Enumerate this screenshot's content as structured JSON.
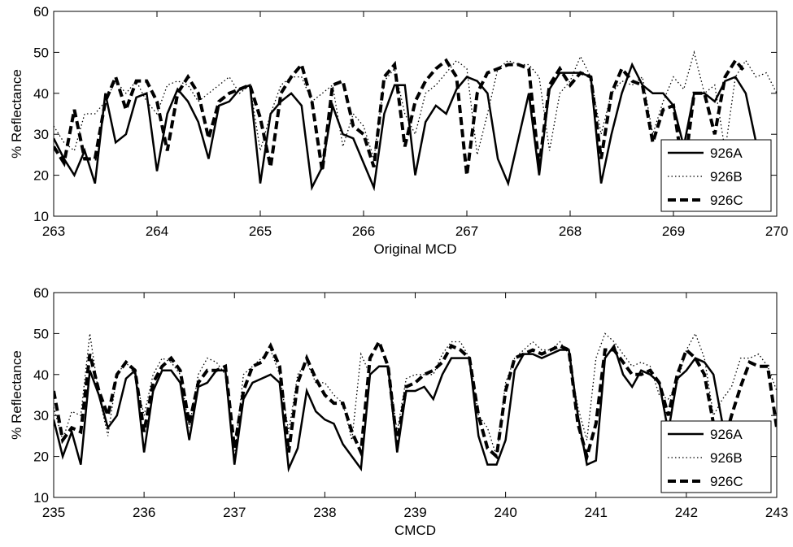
{
  "chart_data": [
    {
      "type": "line",
      "xlabel": "Original MCD",
      "ylabel": "% Reflectance",
      "x": [
        263.0,
        263.1,
        263.2,
        263.3,
        263.4,
        263.5,
        263.6,
        263.7,
        263.8,
        263.9,
        264.0,
        264.1,
        264.2,
        264.3,
        264.4,
        264.5,
        264.6,
        264.7,
        264.8,
        264.9,
        265.0,
        265.1,
        265.2,
        265.3,
        265.4,
        265.5,
        265.6,
        265.7,
        265.8,
        265.9,
        266.0,
        266.1,
        266.2,
        266.3,
        266.4,
        266.5,
        266.6,
        266.7,
        266.8,
        266.9,
        267.0,
        267.1,
        267.2,
        267.3,
        267.4,
        267.5,
        267.6,
        267.7,
        267.8,
        267.9,
        268.0,
        268.1,
        268.2,
        268.3,
        268.4,
        268.5,
        268.6,
        268.7,
        268.8,
        268.9,
        269.0,
        269.1,
        269.2,
        269.3,
        269.4,
        269.5,
        269.6,
        269.7,
        269.8,
        269.9,
        270.0
      ],
      "series": [
        {
          "name": "926A",
          "color": "#000000",
          "linestyle": "solid",
          "values": [
            29,
            24,
            20,
            26,
            18,
            40,
            28,
            30,
            39,
            40,
            21,
            35,
            41,
            38,
            33,
            24,
            37,
            38,
            41,
            42,
            18,
            35,
            38,
            40,
            37,
            17,
            22,
            37,
            30,
            29,
            23,
            17,
            35,
            42,
            42,
            20,
            33,
            37,
            35,
            41,
            44,
            43,
            40,
            24,
            18,
            29,
            40,
            20,
            41,
            45,
            45,
            45,
            44,
            18,
            30,
            40,
            47,
            42,
            40,
            40,
            37,
            27,
            40,
            40,
            38,
            43,
            44,
            40,
            28,
            null,
            null
          ]
        },
        {
          "name": "926B",
          "color": "#000000",
          "linestyle": "dotted",
          "values": [
            32,
            28,
            26,
            35,
            35,
            38,
            43,
            40,
            43,
            38,
            35,
            42,
            43,
            42,
            38,
            40,
            42,
            44,
            40,
            42,
            26,
            35,
            42,
            44,
            44,
            38,
            40,
            42,
            27,
            35,
            32,
            24,
            43,
            46,
            35,
            30,
            40,
            42,
            45,
            48,
            46,
            25,
            35,
            46,
            48,
            47,
            47,
            44,
            26,
            40,
            43,
            49,
            44,
            30,
            40,
            43,
            42,
            44,
            30,
            38,
            44,
            41,
            50,
            40,
            42,
            26,
            44,
            48,
            44,
            45,
            40
          ]
        },
        {
          "name": "926C",
          "color": "#000000",
          "linestyle": "dashed",
          "values": [
            27,
            23,
            36,
            24,
            24,
            38,
            44,
            36,
            43,
            43,
            38,
            26,
            40,
            44,
            40,
            29,
            38,
            40,
            41,
            42,
            34,
            22,
            40,
            44,
            47,
            38,
            21,
            42,
            43,
            32,
            30,
            22,
            44,
            47,
            27,
            38,
            43,
            46,
            48,
            44,
            20,
            40,
            45,
            46,
            47,
            47,
            46,
            22,
            42,
            46,
            42,
            45,
            44,
            24,
            40,
            46,
            43,
            42,
            28,
            36,
            37,
            20,
            40,
            40,
            30,
            44,
            48,
            45,
            null,
            null,
            null
          ]
        }
      ],
      "xlim": [
        263,
        270
      ],
      "ylim": [
        10,
        60
      ],
      "xticks": [
        263,
        264,
        265,
        266,
        267,
        268,
        269,
        270
      ],
      "yticks": [
        10,
        20,
        30,
        40,
        50,
        60
      ],
      "legend": "lower right"
    },
    {
      "type": "line",
      "xlabel": "CMCD",
      "ylabel": "% Reflectance",
      "x": [
        235.0,
        235.1,
        235.2,
        235.3,
        235.4,
        235.5,
        235.6,
        235.7,
        235.8,
        235.9,
        236.0,
        236.1,
        236.2,
        236.3,
        236.4,
        236.5,
        236.6,
        236.7,
        236.8,
        236.9,
        237.0,
        237.1,
        237.2,
        237.3,
        237.4,
        237.5,
        237.6,
        237.7,
        237.8,
        237.9,
        238.0,
        238.1,
        238.2,
        238.3,
        238.4,
        238.5,
        238.6,
        238.7,
        238.8,
        238.9,
        239.0,
        239.1,
        239.2,
        239.3,
        239.4,
        239.5,
        239.6,
        239.7,
        239.8,
        239.9,
        240.0,
        240.1,
        240.2,
        240.3,
        240.4,
        240.5,
        240.6,
        240.7,
        240.8,
        240.9,
        241.0,
        241.1,
        241.2,
        241.3,
        241.4,
        241.5,
        241.6,
        241.7,
        241.8,
        241.9,
        242.0,
        242.1,
        242.2,
        242.3,
        242.4,
        242.5,
        242.6,
        242.7,
        242.8,
        242.9,
        243.0
      ],
      "series": [
        {
          "name": "926A",
          "color": "#000000",
          "linestyle": "solid",
          "values": [
            29,
            20,
            26,
            18,
            41,
            35,
            27,
            30,
            39,
            41,
            21,
            36,
            41,
            41,
            38,
            24,
            37,
            38,
            41,
            41,
            18,
            34,
            38,
            39,
            40,
            38,
            17,
            22,
            36,
            31,
            29,
            28,
            23,
            20,
            17,
            40,
            42,
            42,
            21,
            36,
            36,
            37,
            34,
            40,
            44,
            44,
            44,
            25,
            18,
            18,
            24,
            41,
            45,
            45,
            44,
            45,
            46,
            46,
            30,
            18,
            19,
            44,
            47,
            40,
            37,
            41,
            40,
            38,
            26,
            39,
            41,
            44,
            43,
            40,
            28,
            null,
            null,
            null,
            null,
            null,
            null
          ]
        },
        {
          "name": "926B",
          "color": "#000000",
          "linestyle": "dotted",
          "values": [
            32,
            24,
            31,
            30,
            50,
            35,
            25,
            40,
            43,
            40,
            30,
            40,
            44,
            43,
            40,
            27,
            40,
            44,
            43,
            40,
            20,
            40,
            42,
            44,
            46,
            40,
            26,
            40,
            43,
            38,
            38,
            35,
            33,
            24,
            45,
            40,
            42,
            42,
            26,
            39,
            40,
            40,
            40,
            45,
            48,
            48,
            44,
            30,
            27,
            20,
            38,
            44,
            46,
            48,
            46,
            46,
            48,
            45,
            32,
            24,
            44,
            50,
            48,
            45,
            42,
            43,
            42,
            35,
            34,
            38,
            46,
            50,
            44,
            30,
            34,
            37,
            44,
            44,
            45,
            42,
            36
          ]
        },
        {
          "name": "926C",
          "color": "#000000",
          "linestyle": "dashed",
          "values": [
            36,
            24,
            27,
            26,
            45,
            36,
            30,
            40,
            43,
            41,
            26,
            38,
            42,
            44,
            41,
            28,
            38,
            41,
            41,
            42,
            22,
            36,
            42,
            43,
            47,
            42,
            21,
            38,
            44,
            39,
            35,
            33,
            33,
            26,
            21,
            44,
            48,
            42,
            23,
            37,
            38,
            40,
            41,
            43,
            47,
            46,
            44,
            30,
            22,
            20,
            36,
            44,
            45,
            46,
            45,
            46,
            47,
            46,
            28,
            20,
            28,
            46,
            46,
            43,
            40,
            40,
            41,
            38,
            30,
            40,
            46,
            44,
            40,
            28,
            22,
            30,
            37,
            43,
            42,
            42,
            27
          ]
        }
      ],
      "xlim": [
        235,
        243
      ],
      "ylim": [
        10,
        60
      ],
      "xticks": [
        235,
        236,
        237,
        238,
        239,
        240,
        241,
        242,
        243
      ],
      "yticks": [
        10,
        20,
        30,
        40,
        50,
        60
      ],
      "legend": "lower right"
    }
  ]
}
